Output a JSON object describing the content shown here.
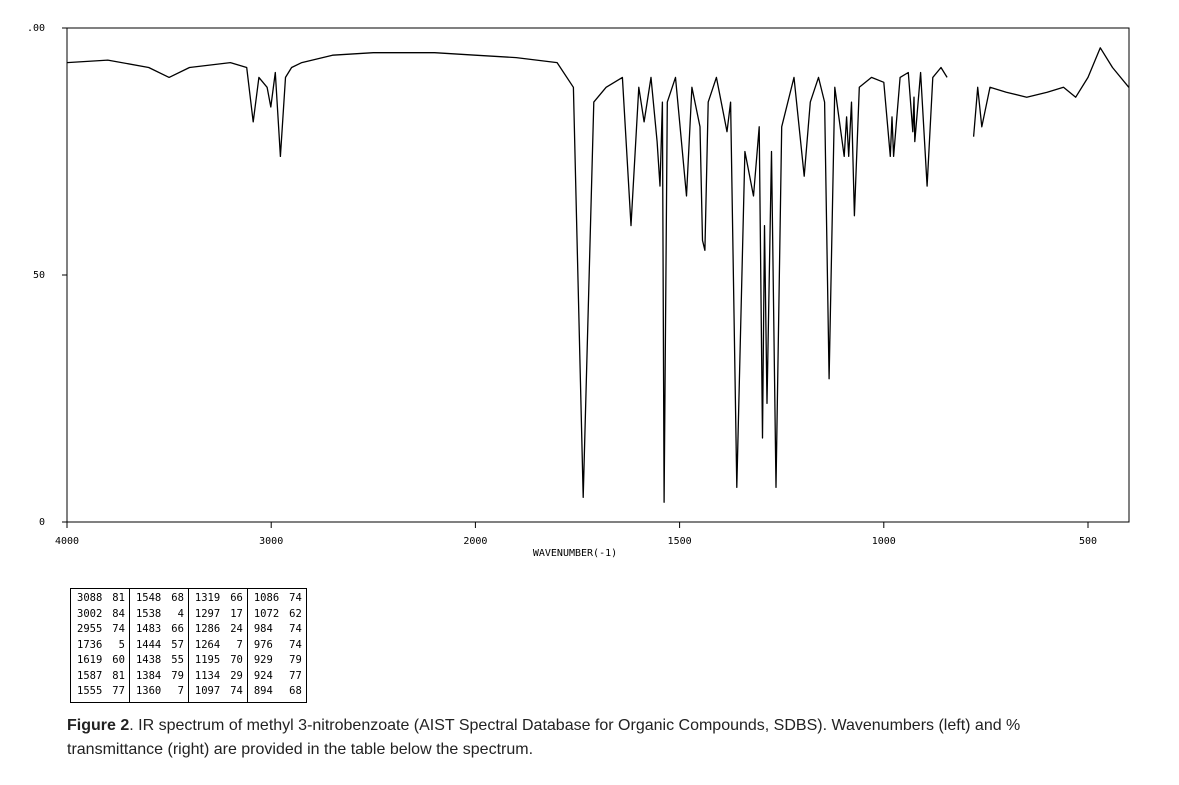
{
  "chart_data": {
    "type": "line",
    "xlabel": "WAVENUMBER(-1)",
    "xlim": [
      4000,
      400
    ],
    "xticks": [
      4000,
      3000,
      2000,
      1500,
      1000,
      500
    ],
    "ylim": [
      0,
      100
    ],
    "yticks": [
      0,
      50,
      {
        "value": 100,
        "label": ".00"
      }
    ],
    "grid": false,
    "color": "#000000",
    "x": [
      4000,
      3800,
      3600,
      3500,
      3400,
      3200,
      3120,
      3088,
      3060,
      3020,
      3002,
      2980,
      2955,
      2930,
      2900,
      2850,
      2700,
      2500,
      2200,
      2000,
      1900,
      1800,
      1760,
      1736,
      1710,
      1680,
      1640,
      1619,
      1600,
      1587,
      1570,
      1555,
      1548,
      1542,
      1538,
      1530,
      1510,
      1483,
      1470,
      1450,
      1444,
      1438,
      1430,
      1410,
      1384,
      1375,
      1360,
      1340,
      1319,
      1305,
      1297,
      1292,
      1286,
      1275,
      1264,
      1250,
      1220,
      1195,
      1180,
      1160,
      1145,
      1134,
      1120,
      1097,
      1091,
      1086,
      1079,
      1072,
      1060,
      1030,
      1000,
      984,
      980,
      976,
      960,
      940,
      929,
      926,
      924,
      910,
      894,
      880,
      860,
      845,
      810,
      780,
      770,
      760,
      740,
      700,
      650,
      600,
      560,
      530,
      500,
      470,
      440,
      400
    ],
    "values": [
      93,
      93.5,
      92,
      90,
      92,
      93,
      92,
      81,
      90,
      88,
      84,
      91,
      74,
      90,
      92,
      93,
      94.5,
      95,
      95,
      94.5,
      94,
      93,
      88,
      5,
      85,
      88,
      90,
      60,
      88,
      81,
      90,
      77,
      68,
      85,
      4,
      85,
      90,
      66,
      88,
      80,
      57,
      55,
      85,
      90,
      79,
      85,
      7,
      75,
      66,
      80,
      17,
      60,
      24,
      75,
      7,
      80,
      90,
      70,
      85,
      90,
      85,
      29,
      88,
      74,
      82,
      74,
      85,
      62,
      88,
      90,
      89,
      74,
      82,
      74,
      90,
      91,
      79,
      86,
      77,
      91,
      68,
      90,
      92,
      90,
      null,
      78,
      88,
      80,
      88,
      87,
      86,
      87,
      88,
      86,
      90,
      96,
      92,
      88
    ]
  },
  "peak_table": {
    "groups": [
      [
        [
          3088,
          81
        ],
        [
          3002,
          84
        ],
        [
          2955,
          74
        ],
        [
          1736,
          5
        ],
        [
          1619,
          60
        ],
        [
          1587,
          81
        ],
        [
          1555,
          77
        ]
      ],
      [
        [
          1548,
          68
        ],
        [
          1538,
          4
        ],
        [
          1483,
          66
        ],
        [
          1444,
          57
        ],
        [
          1438,
          55
        ],
        [
          1384,
          79
        ],
        [
          1360,
          7
        ]
      ],
      [
        [
          1319,
          66
        ],
        [
          1297,
          17
        ],
        [
          1286,
          24
        ],
        [
          1264,
          7
        ],
        [
          1195,
          70
        ],
        [
          1134,
          29
        ],
        [
          1097,
          74
        ]
      ],
      [
        [
          1086,
          74
        ],
        [
          1072,
          62
        ],
        [
          984,
          74
        ],
        [
          976,
          74
        ],
        [
          929,
          79
        ],
        [
          924,
          77
        ],
        [
          894,
          68
        ]
      ]
    ]
  },
  "caption": {
    "label": "Figure 2",
    "text": ". IR spectrum of methyl 3-nitrobenzoate (AIST Spectral Database for Organic Compounds, SDBS). Wavenumbers (left) and % transmittance (right) are provided in the table below the spectrum."
  }
}
